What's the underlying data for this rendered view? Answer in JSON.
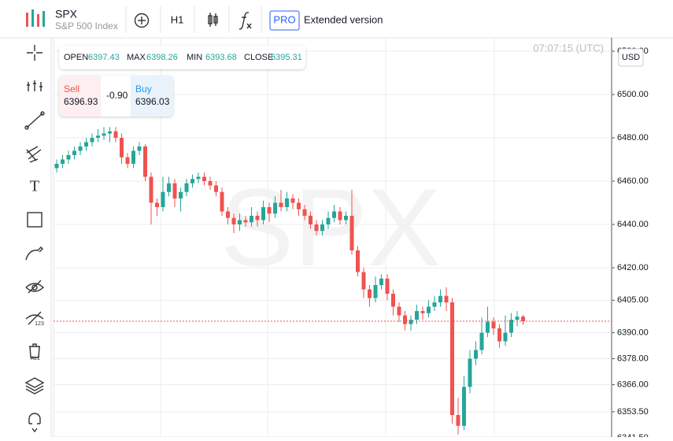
{
  "header": {
    "symbol": "SPX",
    "name": "S&P 500 Index",
    "interval": "H1",
    "pro_badge": "PRO",
    "extended": "Extended version"
  },
  "ohlc_labels": {
    "open": "OPEN",
    "high": "MAX",
    "low": "MIN",
    "close": "CLOSE"
  },
  "trade_panel": {
    "sell_label": "Sell",
    "sell_price": 6396.93,
    "spread": "-0.90",
    "buy_label": "Buy",
    "buy_price": 6396.03
  },
  "clock": "07:07:15 (UTC)",
  "currency": "USD",
  "left_toolbar": {
    "eye_badge": "123",
    "trash_badge": "ALL"
  },
  "chart_data": {
    "type": "candlestick",
    "up_color": "#26a69a",
    "down_color": "#ef5350",
    "grid": true,
    "price_line": true,
    "ylim": [
      6341.82,
      6526.18
    ],
    "yticks": [
      {
        "value": 6341.5,
        "label": "6341.50"
      },
      {
        "value": 6353.5,
        "label": "6353.50"
      },
      {
        "value": 6366,
        "label": "6366.00"
      },
      {
        "value": 6378,
        "label": "6378.00"
      },
      {
        "value": 6390,
        "label": "6390.00"
      },
      {
        "value": 6405,
        "label": "6405.00"
      },
      {
        "value": 6420,
        "label": "6420.00"
      },
      {
        "value": 6440,
        "label": "6440.00"
      },
      {
        "value": 6460,
        "label": "6460.00"
      },
      {
        "value": 6480,
        "label": "6480.00"
      },
      {
        "value": 6500,
        "label": "6500.00"
      },
      {
        "value": 6520,
        "label": "6520.00"
      }
    ],
    "open": [
      6466,
      6468,
      6470,
      6472,
      6474,
      6476,
      6478,
      6480,
      6481,
      6482,
      6483,
      6480,
      6471,
      6468,
      6474,
      6476,
      6462,
      6450,
      6448,
      6455,
      6459,
      6452,
      6455,
      6459,
      6461,
      6462,
      6460,
      6458,
      6455,
      6446,
      6443,
      6440,
      6442,
      6441,
      6444,
      6442,
      6448,
      6445,
      6450,
      6448,
      6452,
      6450,
      6447,
      6444,
      6440,
      6437,
      6440,
      6443,
      6446,
      6442,
      6444,
      6428,
      6418,
      6410,
      6406,
      6412,
      6415,
      6408,
      6402,
      6398,
      6394,
      6396,
      6400,
      6399,
      6402,
      6404,
      6407,
      6404,
      6352,
      6347,
      6365,
      6378,
      6382,
      6390,
      6395,
      6392,
      6386,
      6390,
      6396,
      6397.43
    ],
    "high": [
      6470,
      6472,
      6474,
      6476,
      6478,
      6480,
      6482,
      6484,
      6485,
      6485,
      6485,
      6482,
      6473,
      6476,
      6478,
      6477,
      6464,
      6452,
      6462,
      6462,
      6461,
      6457,
      6461,
      6463,
      6464,
      6464,
      6462,
      6460,
      6457,
      6448,
      6445,
      6445,
      6444,
      6448,
      6446,
      6451,
      6450,
      6453,
      6456,
      6455,
      6454,
      6452,
      6449,
      6446,
      6442,
      6442,
      6446,
      6449,
      6448,
      6446,
      6456,
      6430,
      6420,
      6412,
      6416,
      6417,
      6417,
      6410,
      6404,
      6400,
      6398,
      6403,
      6402,
      6405,
      6407,
      6410,
      6411,
      6406,
      6360,
      6370,
      6382,
      6386,
      6397,
      6402,
      6397,
      6394,
      6398,
      6399,
      6400,
      6398.26
    ],
    "low": [
      6464,
      6466,
      6468,
      6470,
      6472,
      6474,
      6476,
      6478,
      6479,
      6478,
      6478,
      6468,
      6466,
      6466,
      6472,
      6460,
      6440,
      6444,
      6446,
      6453,
      6448,
      6446,
      6453,
      6457,
      6459,
      6458,
      6456,
      6453,
      6444,
      6440,
      6436,
      6437,
      6439,
      6439,
      6439,
      6440,
      6441,
      6443,
      6446,
      6446,
      6447,
      6444,
      6442,
      6438,
      6435,
      6435,
      6438,
      6441,
      6440,
      6440,
      6426,
      6416,
      6406,
      6402,
      6404,
      6410,
      6405,
      6398,
      6395,
      6391,
      6391,
      6394,
      6396,
      6397,
      6400,
      6402,
      6400,
      6348,
      6343,
      6345,
      6362,
      6375,
      6380,
      6388,
      6389,
      6383,
      6384,
      6388,
      6393,
      6393.68
    ],
    "close": [
      6468,
      6470,
      6472,
      6474,
      6476,
      6478,
      6480,
      6481,
      6482,
      6483,
      6480,
      6471,
      6468,
      6474,
      6476,
      6462,
      6450,
      6448,
      6455,
      6459,
      6452,
      6455,
      6459,
      6461,
      6462,
      6460,
      6458,
      6455,
      6446,
      6443,
      6440,
      6442,
      6441,
      6444,
      6442,
      6448,
      6445,
      6450,
      6448,
      6452,
      6450,
      6447,
      6444,
      6440,
      6437,
      6440,
      6443,
      6446,
      6442,
      6444,
      6428,
      6418,
      6410,
      6406,
      6412,
      6415,
      6408,
      6402,
      6398,
      6394,
      6396,
      6400,
      6399,
      6402,
      6404,
      6407,
      6404,
      6352,
      6347,
      6365,
      6378,
      6382,
      6390,
      6395,
      6392,
      6386,
      6390,
      6396,
      6397.43,
      6395.31
    ]
  }
}
